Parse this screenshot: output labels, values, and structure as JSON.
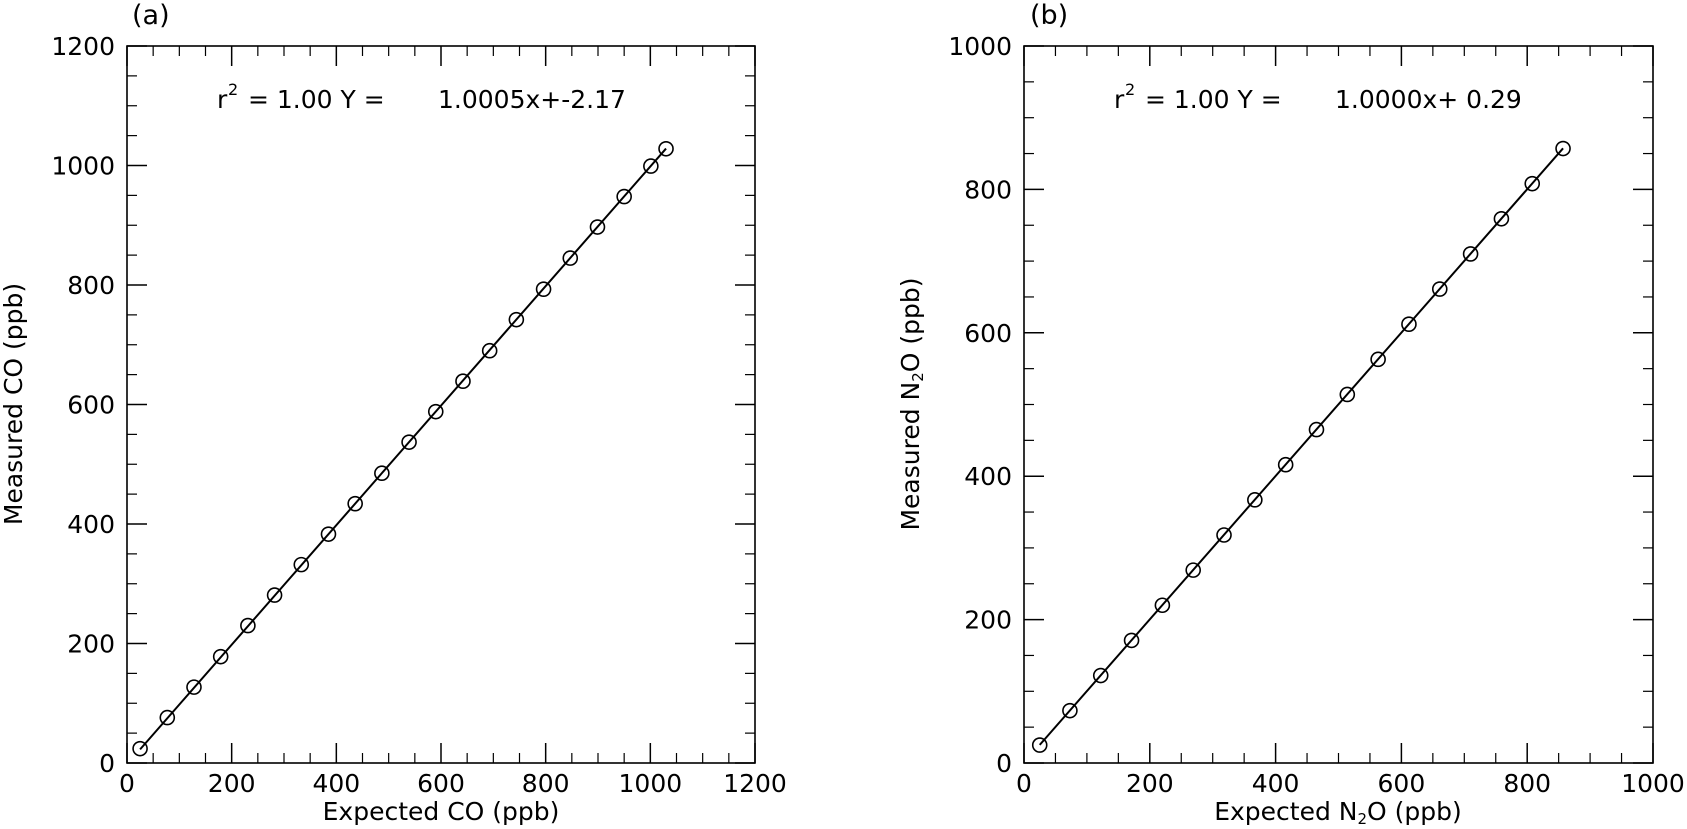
{
  "chart_data": [
    {
      "type": "scatter",
      "panel_label": "(a)",
      "xlabel": "Expected CO (ppb)",
      "ylabel": "Measured CO (ppb)",
      "xlim": [
        0,
        1200
      ],
      "ylim": [
        0,
        1200
      ],
      "xticks": [
        0,
        200,
        400,
        600,
        800,
        1000,
        1200
      ],
      "yticks": [
        0,
        200,
        400,
        600,
        800,
        1000,
        1200
      ],
      "annotation": {
        "r_symbol": "r",
        "r_exponent": "2",
        "r_value": "=  1.00 Y =",
        "equation": "1.0005x+-2.17"
      },
      "fit": {
        "slope": 1.0005,
        "intercept": -2.17,
        "x_range": [
          25,
          1030
        ]
      },
      "series": [
        {
          "x": [
            25,
            77,
            128,
            179,
            231,
            282,
            333,
            385,
            436,
            487,
            539,
            590,
            642,
            693,
            744,
            796,
            847,
            899,
            950,
            1001,
            1030
          ],
          "y": [
            24,
            76,
            127,
            178,
            230,
            281,
            332,
            383,
            434,
            485,
            537,
            588,
            639,
            690,
            742,
            793,
            845,
            897,
            948,
            999,
            1028
          ]
        }
      ]
    },
    {
      "type": "scatter",
      "panel_label": "(b)",
      "xlabel_prefix": "Expected N",
      "xlabel_sub": "2",
      "xlabel_suffix": "O (ppb)",
      "ylabel_prefix": "Measured N",
      "ylabel_sub": "2",
      "ylabel_suffix": "O (ppb)",
      "xlim": [
        0,
        1000
      ],
      "ylim": [
        0,
        1000
      ],
      "xticks": [
        0,
        200,
        400,
        600,
        800,
        1000
      ],
      "yticks": [
        0,
        200,
        400,
        600,
        800,
        1000
      ],
      "annotation": {
        "r_symbol": "r",
        "r_exponent": "2",
        "r_value": "=  1.00 Y =",
        "equation": "1.0000x+ 0.29"
      },
      "fit": {
        "slope": 1.0,
        "intercept": 0.29,
        "x_range": [
          25,
          857
        ]
      },
      "series": [
        {
          "x": [
            25,
            73,
            122,
            171,
            220,
            269,
            318,
            367,
            416,
            465,
            514,
            563,
            612,
            661,
            710,
            759,
            808,
            857
          ],
          "y": [
            25,
            73,
            122,
            171,
            220,
            269,
            318,
            367,
            416,
            465,
            514,
            563,
            612,
            661,
            710,
            759,
            808,
            857
          ]
        }
      ]
    }
  ]
}
